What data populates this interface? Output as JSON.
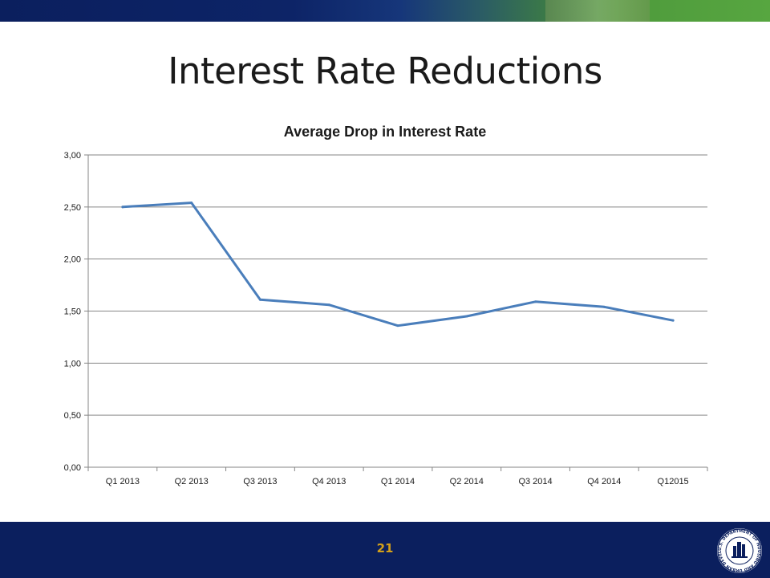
{
  "slide": {
    "title": "Interest Rate Reductions",
    "page_number": "21"
  },
  "seal": {
    "text": "U.S. DEPARTMENT OF HOUSING AND URBAN DEVELOPMENT"
  },
  "colors": {
    "top_band_start": "#0b1f5e",
    "top_band_end": "#57a640",
    "footer_band": "#0b1f5e",
    "page_number": "#d4a019",
    "series_line": "#4a7ebb",
    "gridline": "#868686"
  },
  "chart_data": {
    "type": "line",
    "title": "Average Drop in Interest Rate",
    "categories": [
      "Q1 2013",
      "Q2 2013",
      "Q3 2013",
      "Q4 2013",
      "Q1 2014",
      "Q2 2014",
      "Q3 2014",
      "Q4 2014",
      "Q12015"
    ],
    "series": [
      {
        "values": [
          2.5,
          2.54,
          1.61,
          1.56,
          1.36,
          1.45,
          1.59,
          1.54,
          1.41
        ]
      }
    ],
    "yticks": [
      "0,00",
      "0,50",
      "1,00",
      "1,50",
      "2,00",
      "2,50",
      "3,00"
    ],
    "ylim": [
      0,
      3
    ],
    "grid": true,
    "legend": "none"
  }
}
